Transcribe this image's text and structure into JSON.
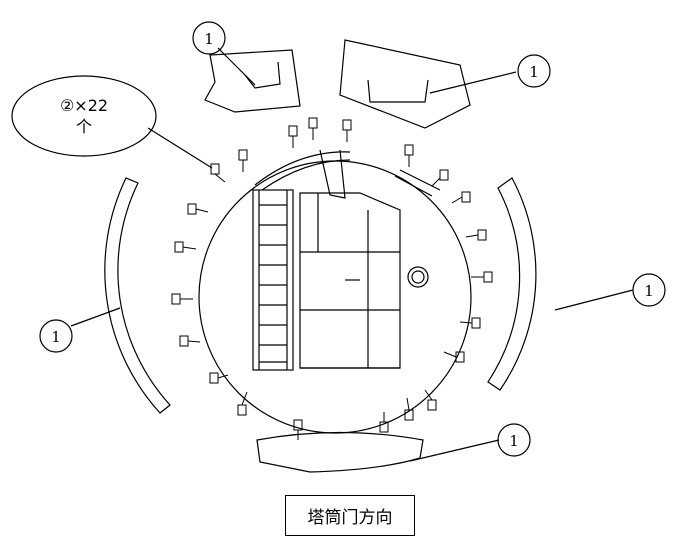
{
  "callouts": {
    "part1_label": "1",
    "part2_symbol": "②×22",
    "part2_unit": "个"
  },
  "direction_label": "塔筒门方向",
  "colors": {
    "line": "#000000",
    "background": "#ffffff"
  }
}
